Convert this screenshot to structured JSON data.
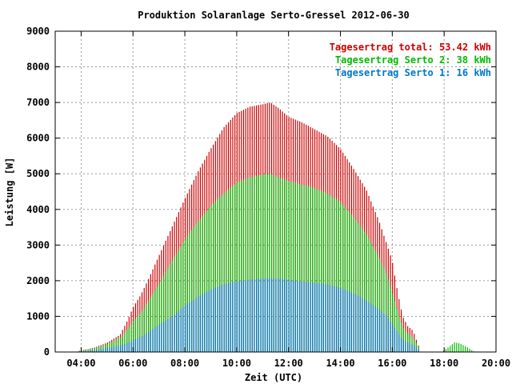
{
  "chart_data": {
    "type": "bar",
    "title": "Produktion Solaranlage Serto-Gressel 2012-06-30",
    "xlabel": "Zeit (UTC)",
    "ylabel": "Leistung [W]",
    "xlim": [
      3.0,
      20.0
    ],
    "ylim": [
      0,
      9000
    ],
    "y_ticks": [
      "0",
      "1000",
      "2000",
      "3000",
      "4000",
      "5000",
      "6000",
      "7000",
      "8000",
      "9000"
    ],
    "x_ticks": [
      "04:00",
      "06:00",
      "08:00",
      "10:00",
      "12:00",
      "14:00",
      "16:00",
      "18:00",
      "20:00"
    ],
    "grid": true,
    "legend_position": "top-right",
    "stacking": "cumulative",
    "legend": [
      {
        "label": "Tagesertrag total: 53.42 kWh",
        "color": "#cc0000"
      },
      {
        "label": "Tagesertrag Serto 2: 38 kWh",
        "color": "#00bb00"
      },
      {
        "label": "Tagesertrag Serto 1: 16 kWh",
        "color": "#0077cc"
      }
    ],
    "series_profiles": [
      {
        "name": "Tagesertrag total: 53.42 kWh",
        "color": "#cc0000",
        "points": [
          [
            3.85,
            20
          ],
          [
            4.5,
            120
          ],
          [
            5.0,
            260
          ],
          [
            5.5,
            480
          ],
          [
            5.8,
            900
          ],
          [
            6.0,
            1250
          ],
          [
            6.3,
            1600
          ],
          [
            6.6,
            2050
          ],
          [
            7.0,
            2700
          ],
          [
            7.5,
            3500
          ],
          [
            8.0,
            4300
          ],
          [
            8.5,
            5050
          ],
          [
            9.0,
            5700
          ],
          [
            9.5,
            6300
          ],
          [
            10.0,
            6700
          ],
          [
            10.5,
            6880
          ],
          [
            11.0,
            6950
          ],
          [
            11.3,
            7000
          ],
          [
            11.6,
            6850
          ],
          [
            12.0,
            6600
          ],
          [
            12.5,
            6450
          ],
          [
            13.0,
            6250
          ],
          [
            13.5,
            6050
          ],
          [
            14.0,
            5700
          ],
          [
            14.5,
            5150
          ],
          [
            15.0,
            4550
          ],
          [
            15.5,
            3650
          ],
          [
            15.8,
            3000
          ],
          [
            16.0,
            2550
          ],
          [
            16.2,
            1700
          ],
          [
            16.4,
            1000
          ],
          [
            16.6,
            720
          ],
          [
            16.8,
            600
          ],
          [
            17.0,
            200
          ],
          [
            17.1,
            0
          ]
        ]
      },
      {
        "name": "Tagesertrag Serto 2: 38 kWh",
        "color": "#00bb00",
        "points": [
          [
            3.85,
            15
          ],
          [
            4.5,
            100
          ],
          [
            5.0,
            220
          ],
          [
            5.5,
            400
          ],
          [
            5.8,
            650
          ],
          [
            6.0,
            850
          ],
          [
            6.3,
            1100
          ],
          [
            6.6,
            1450
          ],
          [
            7.0,
            1900
          ],
          [
            7.5,
            2550
          ],
          [
            8.0,
            3150
          ],
          [
            8.5,
            3650
          ],
          [
            9.0,
            4100
          ],
          [
            9.5,
            4450
          ],
          [
            10.0,
            4750
          ],
          [
            10.5,
            4900
          ],
          [
            11.0,
            4980
          ],
          [
            11.3,
            5000
          ],
          [
            11.6,
            4900
          ],
          [
            12.0,
            4800
          ],
          [
            12.5,
            4700
          ],
          [
            13.0,
            4600
          ],
          [
            13.5,
            4450
          ],
          [
            14.0,
            4200
          ],
          [
            14.5,
            3800
          ],
          [
            15.0,
            3300
          ],
          [
            15.5,
            2650
          ],
          [
            15.8,
            2150
          ],
          [
            16.0,
            1650
          ],
          [
            16.2,
            1150
          ],
          [
            16.4,
            700
          ],
          [
            16.6,
            520
          ],
          [
            16.8,
            420
          ],
          [
            17.0,
            150
          ],
          [
            17.1,
            0
          ]
        ]
      },
      {
        "name": "Tagesertrag Serto 1: 16 kWh",
        "color": "#0077cc",
        "points": [
          [
            3.85,
            10
          ],
          [
            4.5,
            50
          ],
          [
            5.0,
            110
          ],
          [
            5.5,
            180
          ],
          [
            5.8,
            260
          ],
          [
            6.0,
            320
          ],
          [
            6.3,
            430
          ],
          [
            6.6,
            560
          ],
          [
            7.0,
            760
          ],
          [
            7.5,
            1000
          ],
          [
            8.0,
            1300
          ],
          [
            8.5,
            1550
          ],
          [
            9.0,
            1750
          ],
          [
            9.5,
            1900
          ],
          [
            10.0,
            1980
          ],
          [
            10.5,
            2030
          ],
          [
            11.0,
            2060
          ],
          [
            11.3,
            2070
          ],
          [
            11.6,
            2060
          ],
          [
            12.0,
            2020
          ],
          [
            12.5,
            1980
          ],
          [
            13.0,
            1940
          ],
          [
            13.5,
            1900
          ],
          [
            14.0,
            1800
          ],
          [
            14.5,
            1650
          ],
          [
            15.0,
            1450
          ],
          [
            15.5,
            1200
          ],
          [
            15.8,
            1000
          ],
          [
            16.0,
            780
          ],
          [
            16.2,
            560
          ],
          [
            16.4,
            360
          ],
          [
            16.6,
            260
          ],
          [
            16.8,
            200
          ],
          [
            17.0,
            80
          ],
          [
            17.1,
            0
          ]
        ]
      }
    ],
    "evening_bump": {
      "color": "#00bb00",
      "points": [
        [
          17.9,
          0
        ],
        [
          18.2,
          150
        ],
        [
          18.4,
          270
        ],
        [
          18.6,
          240
        ],
        [
          18.9,
          130
        ],
        [
          19.1,
          40
        ],
        [
          19.2,
          0
        ]
      ]
    },
    "bar_interval_hours": 0.0833
  }
}
